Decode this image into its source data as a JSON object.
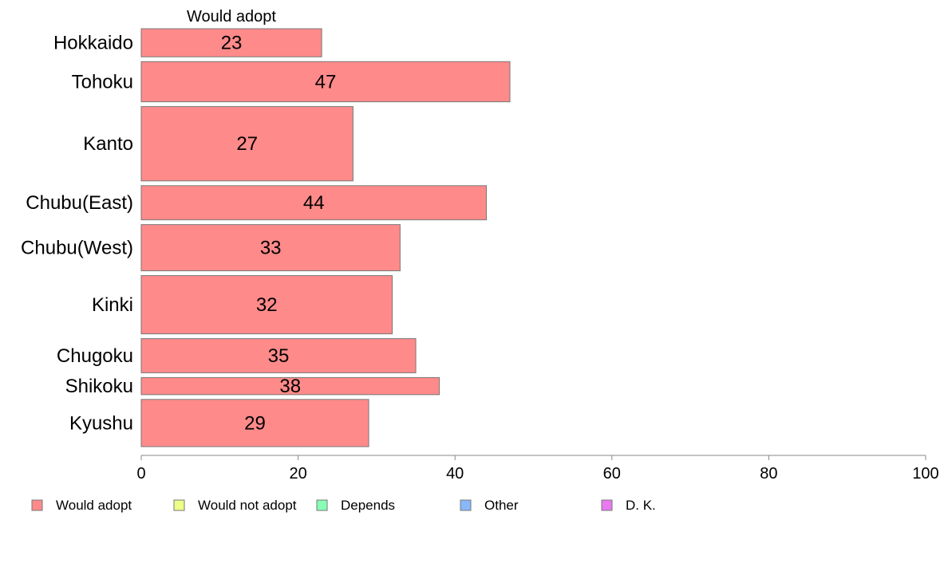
{
  "chart_data": {
    "type": "bar",
    "orientation": "horizontal",
    "stacked": true,
    "top_label": "Would adopt",
    "categories": [
      "Hokkaido",
      "Tohoku",
      "Kanto",
      "Chubu(East)",
      "Chubu(West)",
      "Kinki",
      "Chugoku",
      "Shikoku",
      "Kyushu"
    ],
    "series": [
      {
        "name": "Would adopt",
        "color": "#ff8a8a",
        "values": [
          23,
          47,
          27,
          44,
          33,
          32,
          35,
          38,
          29
        ]
      }
    ],
    "bar_weights": [
      0.28,
      0.4,
      0.74,
      0.34,
      0.46,
      0.58,
      0.34,
      0.17,
      0.47
    ],
    "xlim": [
      0,
      100
    ],
    "xticks": [
      "0",
      "20",
      "40",
      "60",
      "80",
      "100"
    ],
    "legend": [
      {
        "label": "Would adopt",
        "color": "#ff8a8a"
      },
      {
        "label": "Would not adopt",
        "color": "#eeff88"
      },
      {
        "label": "Depends",
        "color": "#88ffb4"
      },
      {
        "label": "Other",
        "color": "#88b8f8"
      },
      {
        "label": "D. K.",
        "color": "#e879f0"
      }
    ],
    "legend_position": "bottom",
    "grid": false,
    "xlabel": "",
    "ylabel": ""
  }
}
